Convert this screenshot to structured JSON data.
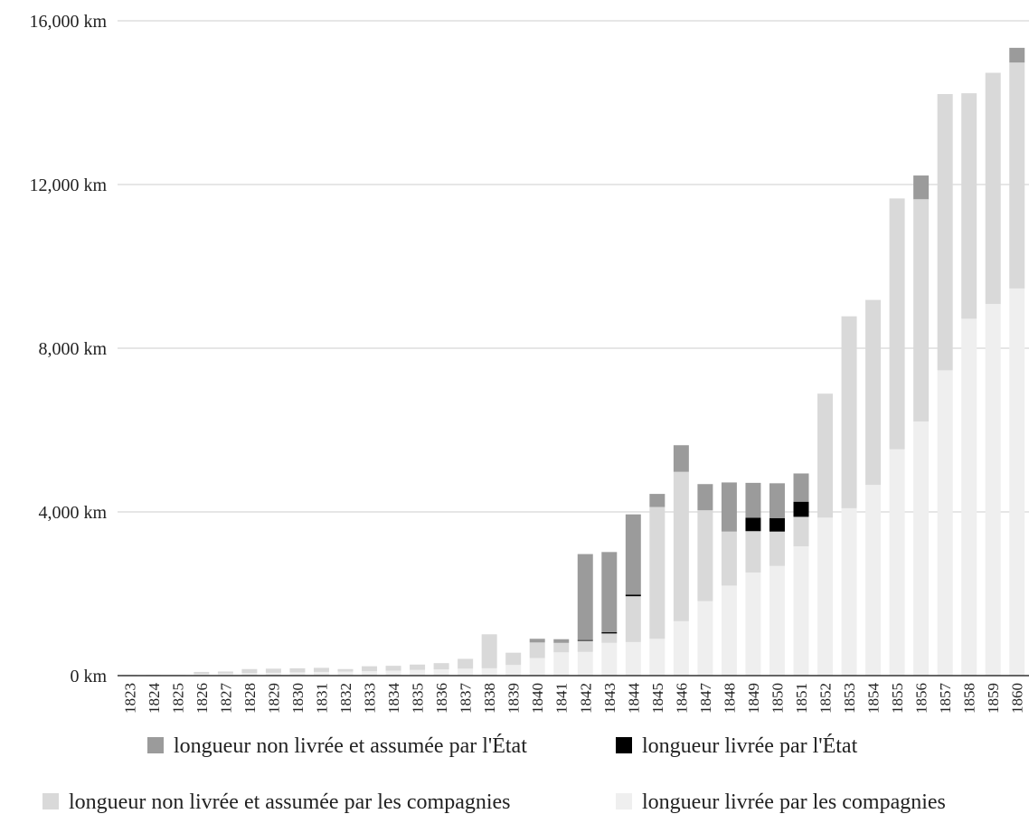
{
  "chart_data": {
    "type": "bar",
    "stacked": true,
    "categories": [
      "1823",
      "1824",
      "1825",
      "1826",
      "1827",
      "1828",
      "1829",
      "1830",
      "1831",
      "1832",
      "1833",
      "1834",
      "1835",
      "1836",
      "1837",
      "1838",
      "1839",
      "1840",
      "1841",
      "1842",
      "1843",
      "1844",
      "1845",
      "1846",
      "1847",
      "1848",
      "1849",
      "1850",
      "1851",
      "1852",
      "1853",
      "1854",
      "1855",
      "1856",
      "1857",
      "1858",
      "1859",
      "1860"
    ],
    "series": [
      {
        "name": "longueur livrée par les compagnies",
        "color": "#efefef",
        "values": [
          18,
          20,
          25,
          40,
          50,
          60,
          70,
          80,
          90,
          100,
          110,
          120,
          140,
          155,
          170,
          180,
          260,
          430,
          570,
          580,
          800,
          820,
          900,
          1330,
          1820,
          2200,
          2520,
          2680,
          3160,
          3860,
          4090,
          4660,
          5530,
          6210,
          7460,
          8720,
          9080,
          9460
        ]
      },
      {
        "name": "longueur non livrée et assumée par les compagnies",
        "color": "#d9d9d9",
        "values": [
          0,
          0,
          0,
          50,
          50,
          100,
          100,
          100,
          100,
          60,
          120,
          120,
          130,
          150,
          240,
          830,
          300,
          380,
          230,
          270,
          230,
          1120,
          3220,
          3650,
          2220,
          1320,
          1010,
          840,
          720,
          3030,
          4690,
          4520,
          6130,
          5430,
          6750,
          5510,
          5650,
          5520
        ]
      },
      {
        "name": "longueur livrée par l'État",
        "color": "#000000",
        "values": [
          0,
          0,
          0,
          0,
          0,
          0,
          0,
          0,
          0,
          0,
          0,
          0,
          0,
          0,
          0,
          0,
          0,
          0,
          0,
          20,
          30,
          40,
          0,
          0,
          0,
          0,
          330,
          330,
          370,
          0,
          0,
          0,
          0,
          0,
          0,
          0,
          0,
          0
        ]
      },
      {
        "name": "longueur non livrée et assumée par l'État",
        "color": "#9b9b9b",
        "values": [
          0,
          0,
          0,
          0,
          0,
          0,
          0,
          0,
          0,
          0,
          0,
          0,
          0,
          0,
          0,
          0,
          0,
          90,
          90,
          2100,
          1960,
          1960,
          320,
          650,
          640,
          1200,
          850,
          850,
          690,
          0,
          0,
          0,
          0,
          580,
          0,
          0,
          0,
          360
        ]
      }
    ],
    "y_ticks": [
      {
        "value": 0,
        "label": "0 km"
      },
      {
        "value": 4000,
        "label": "4,000 km"
      },
      {
        "value": 8000,
        "label": "8,000 km"
      },
      {
        "value": 12000,
        "label": "12,000 km"
      },
      {
        "value": 16000,
        "label": "16,000 km"
      }
    ],
    "ylim": [
      0,
      16000
    ],
    "grid": true,
    "legend": {
      "placement": "bottom",
      "order": [
        3,
        2,
        1,
        0
      ]
    }
  }
}
